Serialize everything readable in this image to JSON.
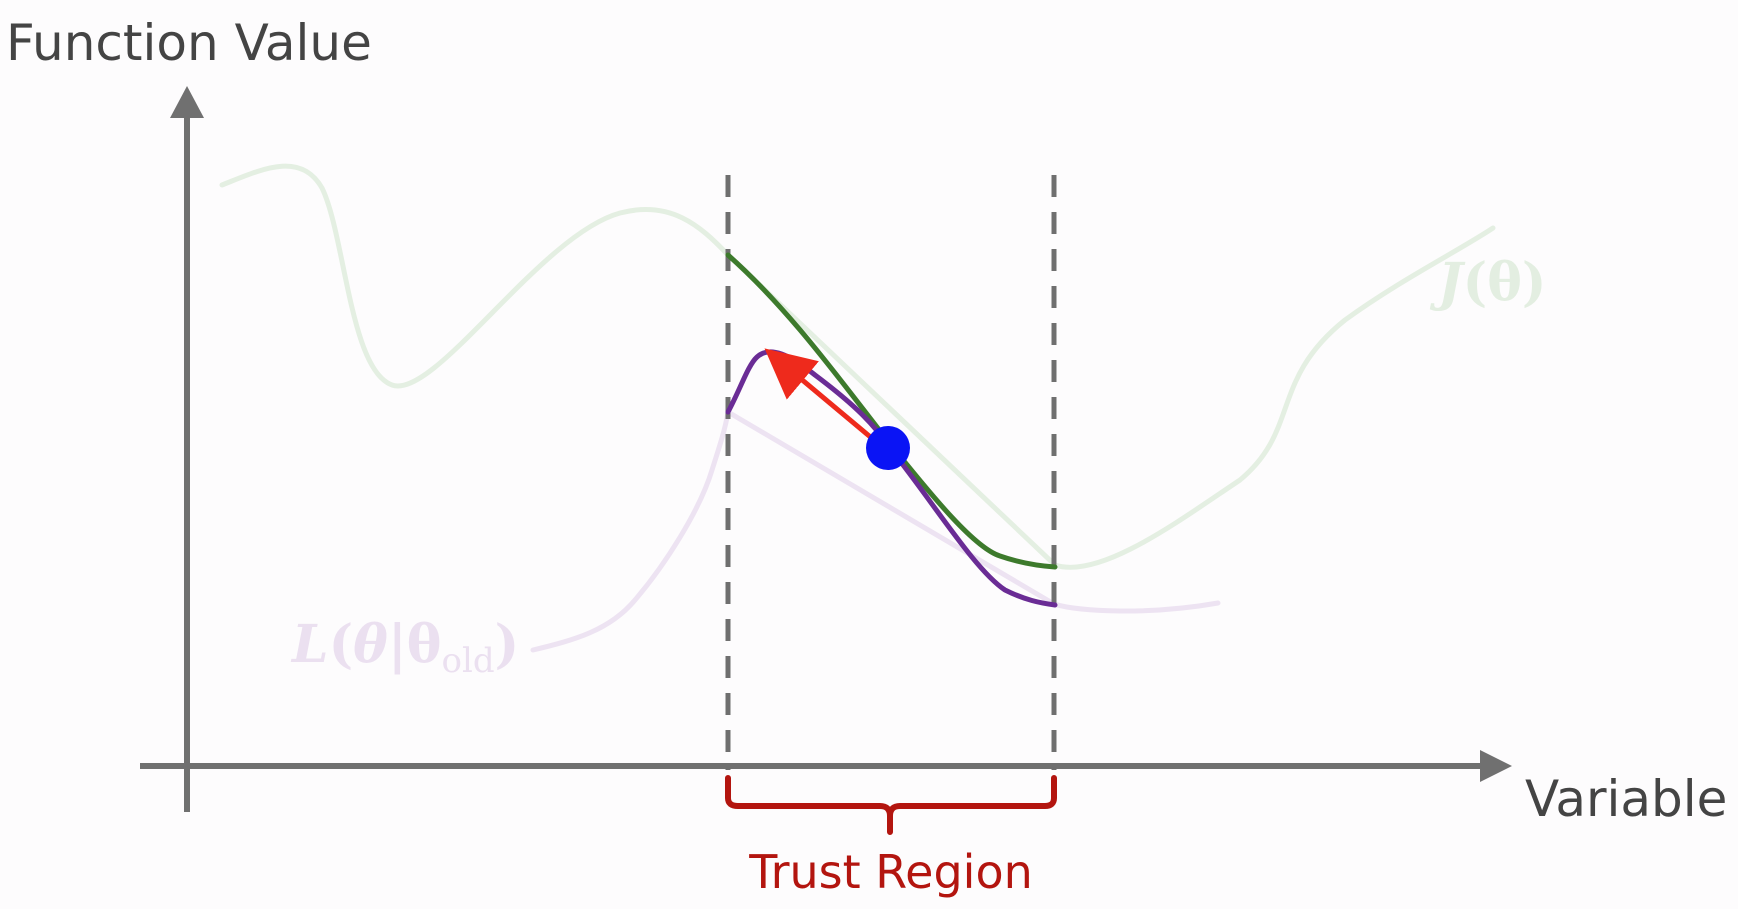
{
  "labels": {
    "y_axis": "Function Value",
    "x_axis": "Variable",
    "region": "Trust Region",
    "J_main": "J",
    "J_arg": "θ",
    "L_main": "L",
    "L_theta": "θ",
    "L_bar": "|",
    "L_theta2": "θ",
    "L_sub": "old",
    "open_paren": "(",
    "close_paren": ")"
  },
  "colors": {
    "axis": "#707070",
    "dashed": "#6f6f6f",
    "objective_faint": "#e4efe2",
    "objective_in_region": "#3d7a2c",
    "surrogate_faint": "#ede3f2",
    "surrogate_in_region": "#6a2c95",
    "step_arrow": "#ee2a1c",
    "current_point": "#0a14f5",
    "region_brace": "#b3150f",
    "region_text": "#b3150f",
    "axis_text": "#444444"
  }
}
